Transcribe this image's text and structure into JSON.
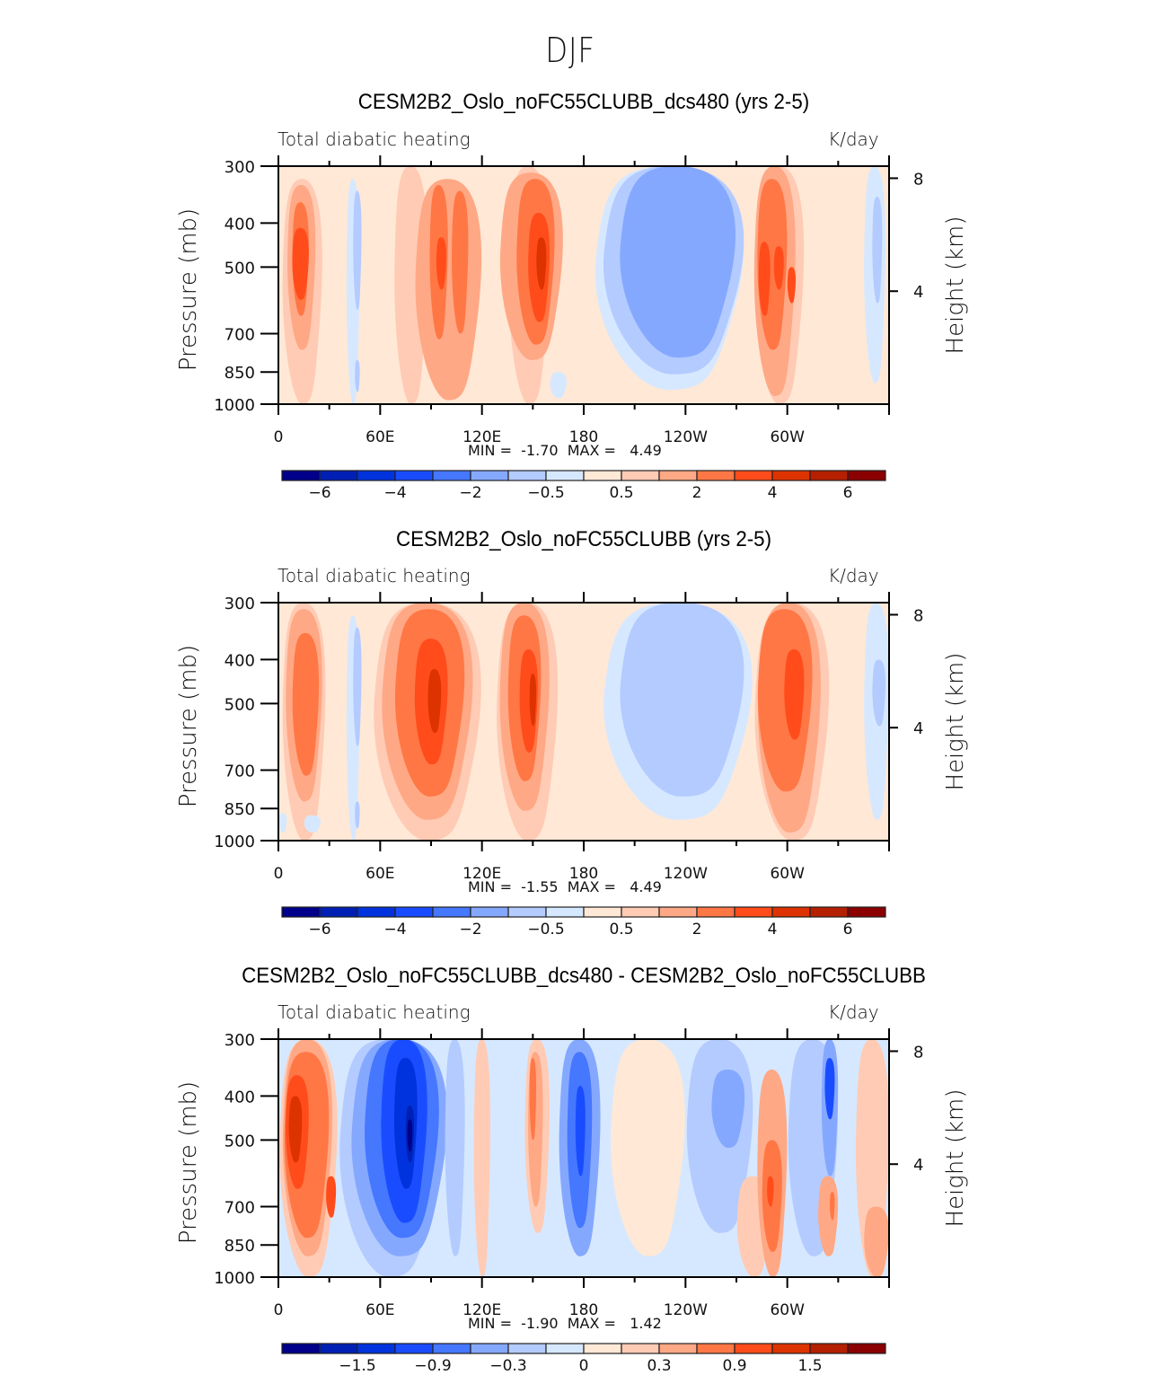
{
  "suptitle": "DJF",
  "colors": {
    "levels": [
      "#00008b",
      "#0020b5",
      "#0033dd",
      "#1a4cff",
      "#4577ff",
      "#85a8ff",
      "#b4cbff",
      "#d6e8ff",
      "#ffe8d6",
      "#ffcbb4",
      "#ffa885",
      "#ff7745",
      "#ff4c1a",
      "#dd3300",
      "#b52000",
      "#8b0000"
    ],
    "frame": "#000000"
  },
  "chart_data": [
    {
      "type": "heatmap",
      "title": "CESM2B2_Oslo_noFC55CLUBB_dcs480 (yrs 2-5)",
      "left_string": "Total diabatic heating",
      "right_string": "K/day",
      "xlabel": "",
      "ylabel": "Pressure (mb)",
      "y2label": "Height (km)",
      "x_ticks": [
        "0",
        "60E",
        "120E",
        "180",
        "120W",
        "60W"
      ],
      "x_range": [
        0,
        360
      ],
      "y_ticks": [
        "300",
        "400",
        "500",
        "700",
        "850",
        "1000"
      ],
      "y_range": [
        1000,
        300
      ],
      "y2_ticks": [
        "8",
        "4"
      ],
      "min_label": "MIN =",
      "min_value": "-1.70",
      "max_label": "MAX =",
      "max_value": "4.49",
      "colorbar_labels": [
        "-6",
        "-4",
        "-2",
        "-0.5",
        "0.5",
        "2",
        "4",
        "6"
      ],
      "colorbar_levels": [
        -7,
        -6,
        -5,
        -4,
        -3,
        -2,
        -1,
        -0.5,
        0,
        0.5,
        1,
        2,
        3,
        4,
        5,
        6,
        7
      ],
      "grid": false,
      "legend": "bottom",
      "background_level": 8,
      "blobs": [
        [
          2,
          26,
          320,
          1000,
          9
        ],
        [
          5,
          22,
          330,
          760,
          10
        ],
        [
          8,
          18,
          360,
          640,
          11
        ],
        [
          8,
          18,
          410,
          590,
          12
        ],
        [
          40,
          48,
          320,
          1000,
          7
        ],
        [
          44,
          49,
          340,
          620,
          6
        ],
        [
          45,
          48,
          800,
          940,
          6
        ],
        [
          68,
          88,
          300,
          1000,
          9
        ],
        [
          80,
          120,
          320,
          980,
          10
        ],
        [
          89,
          100,
          330,
          720,
          11
        ],
        [
          93,
          99,
          430,
          560,
          12
        ],
        [
          102,
          112,
          340,
          700,
          11
        ],
        [
          135,
          160,
          300,
          1000,
          9
        ],
        [
          130,
          168,
          310,
          800,
          10
        ],
        [
          140,
          163,
          320,
          740,
          11
        ],
        [
          147,
          160,
          380,
          660,
          12
        ],
        [
          152,
          158,
          430,
          560,
          13
        ],
        [
          175,
          270,
          300,
          1000,
          8
        ],
        [
          185,
          275,
          300,
          930,
          7
        ],
        [
          190,
          275,
          300,
          860,
          6
        ],
        [
          200,
          270,
          300,
          790,
          5
        ],
        [
          160,
          170,
          850,
          970,
          7
        ],
        [
          280,
          310,
          300,
          1000,
          9
        ],
        [
          280,
          305,
          300,
          960,
          10
        ],
        [
          282,
          300,
          320,
          760,
          11
        ],
        [
          292,
          298,
          450,
          560,
          12
        ],
        [
          283,
          290,
          440,
          640,
          12
        ],
        [
          300,
          305,
          500,
          600,
          12
        ],
        [
          345,
          358,
          300,
          900,
          7
        ],
        [
          350,
          356,
          350,
          600,
          6
        ]
      ]
    },
    {
      "type": "heatmap",
      "title": "CESM2B2_Oslo_noFC55CLUBB (yrs 2-5)",
      "left_string": "Total diabatic heating",
      "right_string": "K/day",
      "xlabel": "",
      "ylabel": "Pressure (mb)",
      "y2label": "Height (km)",
      "x_ticks": [
        "0",
        "60E",
        "120E",
        "180",
        "120W",
        "60W"
      ],
      "x_range": [
        0,
        360
      ],
      "y_ticks": [
        "300",
        "400",
        "500",
        "700",
        "850",
        "1000"
      ],
      "y_range": [
        1000,
        300
      ],
      "y2_ticks": [
        "8",
        "4"
      ],
      "min_label": "MIN =",
      "min_value": "-1.55",
      "max_label": "MAX =",
      "max_value": "4.49",
      "colorbar_labels": [
        "-6",
        "-4",
        "-2",
        "-0.5",
        "0.5",
        "2",
        "4",
        "6"
      ],
      "colorbar_levels": [
        -7,
        -6,
        -5,
        -4,
        -3,
        -2,
        -1,
        -0.5,
        0,
        0.5,
        1,
        2,
        3,
        4,
        5,
        6,
        7
      ],
      "grid": false,
      "legend": "bottom",
      "background_level": 8,
      "blobs": [
        [
          2,
          28,
          300,
          1000,
          9
        ],
        [
          4,
          26,
          310,
          820,
          10
        ],
        [
          8,
          24,
          350,
          720,
          11
        ],
        [
          40,
          48,
          320,
          1000,
          7
        ],
        [
          44,
          49,
          340,
          620,
          6
        ],
        [
          45,
          48,
          820,
          940,
          6
        ],
        [
          55,
          120,
          300,
          1000,
          9
        ],
        [
          60,
          115,
          300,
          900,
          10
        ],
        [
          68,
          110,
          310,
          800,
          11
        ],
        [
          80,
          100,
          360,
          680,
          12
        ],
        [
          88,
          96,
          420,
          580,
          13
        ],
        [
          128,
          165,
          300,
          1000,
          9
        ],
        [
          130,
          160,
          300,
          860,
          10
        ],
        [
          135,
          155,
          320,
          740,
          11
        ],
        [
          142,
          153,
          380,
          640,
          12
        ],
        [
          148,
          152,
          430,
          560,
          13
        ],
        [
          180,
          275,
          300,
          1000,
          8
        ],
        [
          190,
          280,
          300,
          900,
          7
        ],
        [
          200,
          275,
          300,
          800,
          6
        ],
        [
          280,
          325,
          300,
          1000,
          9
        ],
        [
          282,
          320,
          300,
          960,
          10
        ],
        [
          282,
          315,
          310,
          780,
          11
        ],
        [
          298,
          310,
          380,
          600,
          12
        ],
        [
          345,
          360,
          300,
          900,
          7
        ],
        [
          350,
          358,
          400,
          560,
          6
        ],
        [
          15,
          25,
          880,
          960,
          7
        ],
        [
          0,
          5,
          870,
          960,
          7
        ]
      ]
    },
    {
      "type": "heatmap",
      "title": "CESM2B2_Oslo_noFC55CLUBB_dcs480 - CESM2B2_Oslo_noFC55CLUBB",
      "left_string": "Total diabatic heating",
      "right_string": "K/day",
      "xlabel": "",
      "ylabel": "Pressure (mb)",
      "y2label": "Height (km)",
      "x_ticks": [
        "0",
        "60E",
        "120E",
        "180",
        "120W",
        "60W"
      ],
      "x_range": [
        0,
        360
      ],
      "y_ticks": [
        "300",
        "400",
        "500",
        "700",
        "850",
        "1000"
      ],
      "y_range": [
        1000,
        300
      ],
      "y2_ticks": [
        "8",
        "4"
      ],
      "min_label": "MIN =",
      "min_value": "-1.90",
      "max_label": "MAX =",
      "max_value": "1.42",
      "colorbar_labels": [
        "-1.5",
        "-0.9",
        "-0.3",
        "0",
        "0.3",
        "0.9",
        "1.5"
      ],
      "colorbar_levels": [
        -2.1,
        -1.8,
        -1.5,
        -1.2,
        -0.9,
        -0.6,
        -0.3,
        0,
        0.3,
        0.6,
        0.9,
        1.2,
        1.5,
        1.8,
        2.1
      ],
      "grid": false,
      "legend": "bottom",
      "background_level": 7,
      "blobs": [
        [
          0,
          35,
          300,
          1000,
          9
        ],
        [
          2,
          32,
          300,
          900,
          10
        ],
        [
          3,
          30,
          320,
          820,
          11
        ],
        [
          4,
          18,
          360,
          640,
          12
        ],
        [
          6,
          14,
          400,
          560,
          13
        ],
        [
          28,
          34,
          600,
          740,
          12
        ],
        [
          35,
          95,
          300,
          1000,
          6
        ],
        [
          42,
          100,
          300,
          900,
          5
        ],
        [
          50,
          95,
          300,
          820,
          4
        ],
        [
          60,
          88,
          300,
          760,
          3
        ],
        [
          68,
          82,
          330,
          640,
          2
        ],
        [
          75,
          80,
          420,
          560,
          1
        ],
        [
          76,
          79,
          450,
          530,
          0
        ],
        [
          98,
          110,
          300,
          900,
          6
        ],
        [
          115,
          125,
          300,
          1000,
          9
        ],
        [
          145,
          160,
          300,
          800,
          9
        ],
        [
          147,
          156,
          320,
          700,
          10
        ],
        [
          148,
          152,
          330,
          500,
          11
        ],
        [
          165,
          190,
          300,
          900,
          5
        ],
        [
          170,
          185,
          320,
          780,
          4
        ],
        [
          175,
          181,
          380,
          600,
          3
        ],
        [
          195,
          240,
          300,
          900,
          8
        ],
        [
          215,
          225,
          320,
          700,
          8
        ],
        [
          240,
          280,
          300,
          800,
          6
        ],
        [
          255,
          275,
          350,
          520,
          5
        ],
        [
          270,
          290,
          600,
          1000,
          9
        ],
        [
          282,
          300,
          350,
          1000,
          10
        ],
        [
          285,
          297,
          500,
          880,
          11
        ],
        [
          288,
          292,
          600,
          700,
          12
        ],
        [
          300,
          330,
          300,
          900,
          6
        ],
        [
          320,
          330,
          300,
          600,
          5
        ],
        [
          322,
          328,
          330,
          450,
          3
        ],
        [
          318,
          330,
          600,
          900,
          10
        ],
        [
          325,
          328,
          650,
          750,
          11
        ],
        [
          340,
          360,
          300,
          1000,
          9
        ],
        [
          345,
          360,
          700,
          1000,
          10
        ]
      ]
    }
  ]
}
